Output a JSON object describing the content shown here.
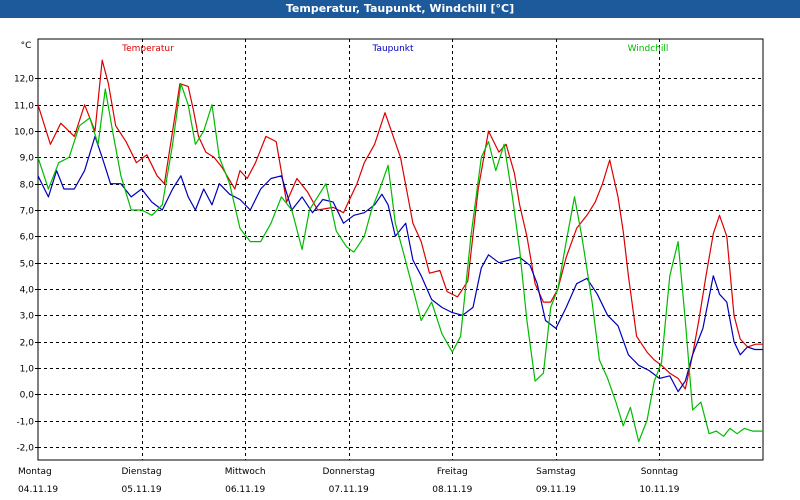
{
  "window": {
    "title": "Temperatur, Taupunkt, Windchill [°C]"
  },
  "chart_data": {
    "type": "line",
    "title": "Temperatur, Taupunkt, Windchill [°C]",
    "ylabel": "°C",
    "ylim": [
      -2.5,
      13.5
    ],
    "y_ticks": [
      -2.0,
      -1.0,
      0.0,
      1.0,
      2.0,
      3.0,
      4.0,
      5.0,
      6.0,
      7.0,
      8.0,
      9.0,
      10.0,
      11.0,
      12.0
    ],
    "y_tick_labels": [
      "-2,0",
      "-1,0",
      "0,0",
      "1,0",
      "2,0",
      "3,0",
      "4,0",
      "5,0",
      "6,0",
      "7,0",
      "8,0",
      "9,0",
      "10,0",
      "11,0",
      "12,0"
    ],
    "x_unit": "days since Montag 00:00",
    "xlim": [
      0,
      7
    ],
    "days": [
      {
        "day": "Montag",
        "date": "04.11.19"
      },
      {
        "day": "Dienstag",
        "date": "05.11.19"
      },
      {
        "day": "Mittwoch",
        "date": "06.11.19"
      },
      {
        "day": "Donnerstag",
        "date": "07.11.19"
      },
      {
        "day": "Freitag",
        "date": "08.11.19"
      },
      {
        "day": "Samstag",
        "date": "09.11.19"
      },
      {
        "day": "Sonntag",
        "date": "10.11.19"
      }
    ],
    "grid": true,
    "series": [
      {
        "name": "Temperatur",
        "color": "#dd0000",
        "x": [
          0,
          0.12,
          0.22,
          0.35,
          0.45,
          0.55,
          0.62,
          0.68,
          0.75,
          0.85,
          0.95,
          1.05,
          1.15,
          1.22,
          1.3,
          1.37,
          1.45,
          1.5,
          1.55,
          1.62,
          1.7,
          1.78,
          1.9,
          1.95,
          2.02,
          2.1,
          2.2,
          2.3,
          2.4,
          2.5,
          2.6,
          2.7,
          2.85,
          2.95,
          3.02,
          3.08,
          3.15,
          3.25,
          3.35,
          3.5,
          3.62,
          3.7,
          3.78,
          3.88,
          3.95,
          4.05,
          4.15,
          4.25,
          4.35,
          4.45,
          4.52,
          4.6,
          4.65,
          4.72,
          4.8,
          4.88,
          4.95,
          5.02,
          5.1,
          5.2,
          5.3,
          5.38,
          5.45,
          5.52,
          5.6,
          5.65,
          5.7,
          5.78,
          5.88,
          5.95,
          6.02,
          6.1,
          6.18,
          6.25,
          6.32,
          6.38,
          6.45,
          6.52,
          6.58,
          6.65,
          6.72,
          6.78,
          6.85,
          6.93,
          7.0
        ],
        "values": [
          11.0,
          9.5,
          10.3,
          9.8,
          11.0,
          10.0,
          12.7,
          11.8,
          10.2,
          9.6,
          8.8,
          9.1,
          8.3,
          8.0,
          10.0,
          11.8,
          11.7,
          10.8,
          9.8,
          9.2,
          9.0,
          8.6,
          7.8,
          8.5,
          8.2,
          8.8,
          9.8,
          9.6,
          7.3,
          8.2,
          7.7,
          7.0,
          7.1,
          6.9,
          7.5,
          8.0,
          8.8,
          9.5,
          10.7,
          9.0,
          6.5,
          5.8,
          4.6,
          4.7,
          3.9,
          3.7,
          4.3,
          7.8,
          10.0,
          9.2,
          9.5,
          8.4,
          7.2,
          6.0,
          4.2,
          3.5,
          3.5,
          4.0,
          5.2,
          6.3,
          6.8,
          7.3,
          8.0,
          8.9,
          7.5,
          6.2,
          4.5,
          2.2,
          1.6,
          1.3,
          1.1,
          0.8,
          0.6,
          0.2,
          1.5,
          2.8,
          4.5,
          6.1,
          6.8,
          6.0,
          3.0,
          2.1,
          1.8,
          1.9,
          1.9
        ]
      },
      {
        "name": "Taupunkt",
        "color": "#0000bb",
        "x": [
          0,
          0.1,
          0.18,
          0.25,
          0.35,
          0.45,
          0.55,
          0.62,
          0.7,
          0.8,
          0.9,
          1.0,
          1.1,
          1.2,
          1.3,
          1.38,
          1.45,
          1.52,
          1.6,
          1.68,
          1.75,
          1.85,
          1.95,
          2.05,
          2.15,
          2.25,
          2.35,
          2.45,
          2.55,
          2.65,
          2.75,
          2.85,
          2.95,
          3.05,
          3.15,
          3.25,
          3.32,
          3.38,
          3.45,
          3.55,
          3.62,
          3.7,
          3.8,
          3.9,
          4.0,
          4.1,
          4.2,
          4.28,
          4.35,
          4.45,
          4.55,
          4.65,
          4.75,
          4.82,
          4.9,
          5.0,
          5.1,
          5.2,
          5.3,
          5.4,
          5.5,
          5.6,
          5.7,
          5.8,
          5.9,
          6.0,
          6.1,
          6.18,
          6.25,
          6.32,
          6.42,
          6.52,
          6.58,
          6.65,
          6.72,
          6.78,
          6.85,
          6.92,
          7.0
        ],
        "values": [
          8.3,
          7.5,
          8.5,
          7.8,
          7.8,
          8.5,
          9.8,
          9.0,
          8.0,
          8.0,
          7.5,
          7.8,
          7.3,
          7.0,
          7.8,
          8.3,
          7.5,
          7.0,
          7.8,
          7.2,
          8.0,
          7.6,
          7.4,
          7.0,
          7.8,
          8.2,
          8.3,
          7.0,
          7.5,
          6.9,
          7.4,
          7.3,
          6.5,
          6.8,
          6.9,
          7.2,
          7.6,
          7.2,
          6.0,
          6.5,
          5.1,
          4.5,
          3.6,
          3.3,
          3.1,
          3.0,
          3.3,
          4.8,
          5.3,
          5.0,
          5.1,
          5.2,
          4.9,
          4.2,
          2.8,
          2.5,
          3.3,
          4.2,
          4.4,
          3.8,
          3.0,
          2.6,
          1.5,
          1.1,
          0.9,
          0.6,
          0.7,
          0.1,
          0.5,
          1.5,
          2.5,
          4.5,
          3.8,
          3.5,
          2.0,
          1.5,
          1.8,
          1.7,
          1.7
        ]
      },
      {
        "name": "Windchill",
        "color": "#00bb00",
        "x": [
          0,
          0.1,
          0.2,
          0.3,
          0.4,
          0.5,
          0.58,
          0.65,
          0.72,
          0.8,
          0.9,
          1.0,
          1.1,
          1.2,
          1.3,
          1.38,
          1.45,
          1.52,
          1.6,
          1.68,
          1.75,
          1.85,
          1.95,
          2.05,
          2.15,
          2.25,
          2.35,
          2.45,
          2.55,
          2.62,
          2.7,
          2.78,
          2.88,
          2.98,
          3.05,
          3.15,
          3.22,
          3.3,
          3.38,
          3.45,
          3.52,
          3.6,
          3.7,
          3.8,
          3.9,
          4.0,
          4.08,
          4.18,
          4.28,
          4.35,
          4.42,
          4.5,
          4.58,
          4.65,
          4.72,
          4.8,
          4.88,
          4.95,
          5.02,
          5.1,
          5.18,
          5.25,
          5.35,
          5.42,
          5.5,
          5.58,
          5.65,
          5.72,
          5.8,
          5.88,
          5.95,
          6.02,
          6.1,
          6.18,
          6.25,
          6.32,
          6.4,
          6.48,
          6.55,
          6.62,
          6.68,
          6.75,
          6.82,
          6.9,
          7.0
        ],
        "values": [
          9.0,
          7.8,
          8.8,
          9.0,
          10.2,
          10.5,
          9.5,
          11.6,
          10.0,
          8.3,
          7.0,
          7.0,
          6.8,
          7.2,
          9.5,
          11.8,
          11.0,
          9.5,
          10.0,
          11.0,
          9.0,
          8.0,
          6.3,
          5.8,
          5.8,
          6.5,
          7.5,
          7.0,
          5.5,
          7.0,
          7.5,
          8.0,
          6.2,
          5.6,
          5.4,
          6.0,
          7.0,
          7.8,
          8.7,
          6.5,
          5.5,
          4.3,
          2.8,
          3.5,
          2.3,
          1.6,
          2.2,
          6.0,
          9.0,
          9.6,
          8.5,
          9.5,
          7.5,
          5.5,
          2.8,
          0.5,
          0.8,
          3.3,
          4.0,
          5.8,
          7.5,
          6.0,
          3.5,
          1.3,
          0.6,
          -0.3,
          -1.2,
          -0.5,
          -1.8,
          -1.0,
          0.5,
          1.2,
          4.5,
          5.8,
          2.8,
          -0.6,
          -0.3,
          -1.5,
          -1.4,
          -1.6,
          -1.3,
          -1.5,
          -1.3,
          -1.4,
          -1.4
        ]
      }
    ]
  }
}
